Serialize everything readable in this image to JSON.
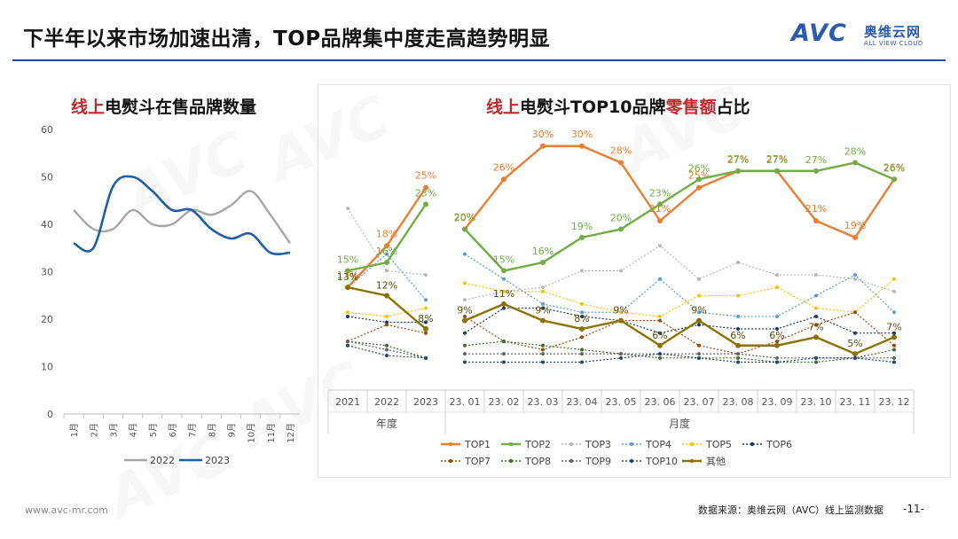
{
  "page": {
    "title": "下半年以来市场加速出清，TOP品牌集中度走高趋势明显",
    "logo": {
      "mark": "AVC",
      "cn": "奥维云网",
      "en": "ALL VIEW CLOUD"
    },
    "watermark": "AVC",
    "footer_url": "www.avc-mr.com",
    "footer_source": "数据来源：奥维云网（AVC）线上监测数据",
    "page_number": "-11-"
  },
  "left_chart": {
    "title_prefix": "线上",
    "title_rest": "电熨斗在售品牌数量"
  },
  "right_chart": {
    "title_prefix": "线上",
    "title_mid": "电熨斗TOP10品牌",
    "title_highlight": "零售额",
    "title_suffix": "占比"
  },
  "chart_data": [
    {
      "type": "line",
      "title": "线上电熨斗在售品牌数量",
      "categories": [
        "1月",
        "2月",
        "3月",
        "4月",
        "5月",
        "6月",
        "7月",
        "8月",
        "9月",
        "10月",
        "11月",
        "12月"
      ],
      "ylim": [
        0,
        60
      ],
      "yticks": [
        0,
        10,
        20,
        30,
        40,
        50,
        60
      ],
      "series": [
        {
          "name": "2022",
          "color": "#a6a6a6",
          "values": [
            43,
            39,
            39,
            43,
            40,
            40,
            43,
            42,
            44,
            47,
            42,
            36
          ]
        },
        {
          "name": "2023",
          "color": "#1f5fa8",
          "values": [
            36,
            35,
            48,
            50,
            47,
            43,
            43,
            39,
            37,
            38,
            34,
            34
          ]
        }
      ]
    },
    {
      "type": "line",
      "title": "线上电熨斗TOP10品牌零售额占比",
      "yearly_categories": [
        "2021",
        "2022",
        "2023"
      ],
      "monthly_categories": [
        "23. 01",
        "23. 02",
        "23. 03",
        "23. 04",
        "23. 05",
        "23. 06",
        "23. 07",
        "23. 08",
        "23. 09",
        "23. 10",
        "23. 11",
        "23. 12"
      ],
      "group_labels": {
        "yearly": "年度",
        "monthly": "月度"
      },
      "unit": "%",
      "series": [
        {
          "name": "TOP1",
          "color": "#ed7d31",
          "style": "solid",
          "labeled": true,
          "label_color": "#ed7d31",
          "yearly": [
            13,
            18,
            25
          ],
          "monthly": [
            20,
            26,
            30,
            30,
            28,
            21,
            25,
            27,
            27,
            21,
            19,
            26
          ]
        },
        {
          "name": "TOP2",
          "color": "#70ad47",
          "style": "solid",
          "labeled": true,
          "label_color": "#70ad47",
          "yearly": [
            15,
            16,
            23
          ],
          "monthly": [
            20,
            15,
            16,
            19,
            20,
            23,
            26,
            27,
            27,
            27,
            28,
            26
          ]
        },
        {
          "name": "TOP3",
          "color": "#b7b7b7",
          "style": "dotted",
          "yearly": [
            22.5,
            15,
            14.5
          ],
          "monthly": [
            11.5,
            12.5,
            13,
            15,
            15,
            18,
            14,
            16,
            14.5,
            14.5,
            14,
            12.5
          ]
        },
        {
          "name": "TOP4",
          "color": "#5b9bd5",
          "style": "dotted",
          "yearly": [
            13,
            17,
            11.5
          ],
          "monthly": [
            17,
            14,
            11,
            10,
            10,
            14,
            10,
            9.5,
            9.5,
            12,
            14.5,
            10
          ]
        },
        {
          "name": "TOP5",
          "color": "#ffc000",
          "style": "dotted",
          "yearly": [
            10,
            9.5,
            10.5
          ],
          "monthly": [
            13.5,
            12.5,
            12.5,
            11,
            10,
            9.5,
            12,
            12,
            13,
            10.5,
            10,
            14
          ]
        },
        {
          "name": "TOP6",
          "color": "#1f3864",
          "style": "dotted",
          "yearly": [
            9.5,
            8.8,
            8.8
          ],
          "monthly": [
            7.5,
            10.5,
            10.5,
            9.5,
            9,
            7.5,
            8.5,
            8,
            8,
            9.5,
            7.5,
            7.5
          ]
        },
        {
          "name": "TOP7",
          "color": "#9e480e",
          "style": "dotted",
          "yearly": [
            6.5,
            8.5,
            7.5
          ],
          "monthly": [
            9.5,
            6.5,
            5.5,
            7,
            9,
            9,
            6,
            5,
            6.5,
            8.5,
            10,
            6
          ]
        },
        {
          "name": "TOP8",
          "color": "#43682b",
          "style": "dotted",
          "yearly": [
            6.5,
            6,
            4.5
          ],
          "monthly": [
            6,
            6.5,
            6,
            5.5,
            5,
            4.5,
            4.5,
            4.5,
            4,
            4,
            4.5,
            5.5
          ]
        },
        {
          "name": "TOP9",
          "color": "#636363",
          "style": "dotted",
          "yearly": [
            6.5,
            5.5,
            4.5
          ],
          "monthly": [
            5,
            5,
            5,
            5,
            5,
            5,
            5,
            5,
            4.5,
            4.5,
            4.5,
            4.5
          ]
        },
        {
          "name": "TOP10",
          "color": "#264478",
          "style": "dotted",
          "yearly": [
            6,
            4.8,
            4.5
          ],
          "monthly": [
            4,
            4,
            4,
            4,
            4.5,
            5,
            4.5,
            4,
            4,
            4.5,
            4.5,
            4
          ]
        },
        {
          "name": "其他",
          "color": "#8b7200",
          "style": "solid",
          "labeled": true,
          "label_color": "#5c4d00",
          "yearly": [
            13,
            12,
            8
          ],
          "monthly": [
            9,
            11,
            9,
            8,
            9,
            6,
            9,
            6,
            6,
            7,
            5,
            7
          ]
        }
      ]
    }
  ]
}
